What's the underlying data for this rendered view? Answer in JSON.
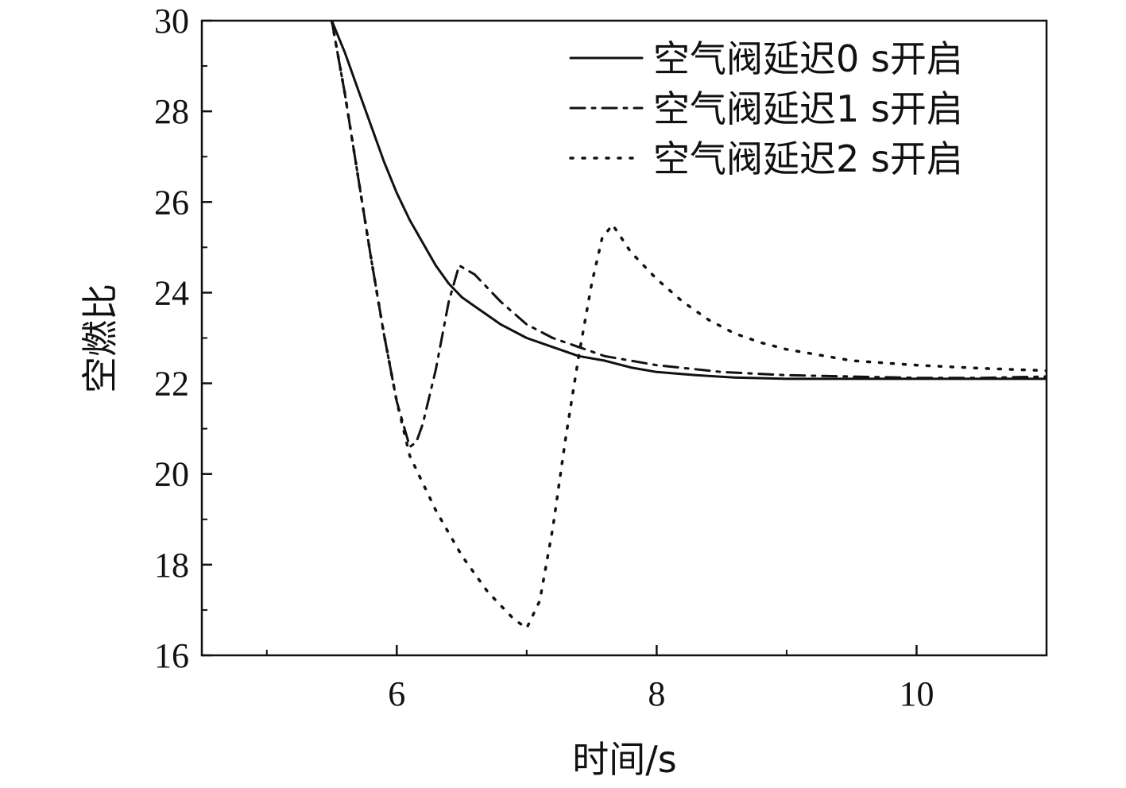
{
  "chart_data": {
    "type": "line",
    "title": "",
    "xlabel": "时间/s",
    "ylabel": "空燃比",
    "xlim": [
      4.5,
      11
    ],
    "ylim": [
      16,
      30
    ],
    "xticks": [
      6,
      8,
      10
    ],
    "xminor": [
      5,
      7,
      9
    ],
    "yticks": [
      16,
      18,
      20,
      22,
      24,
      26,
      28,
      30
    ],
    "yminor": [
      17,
      19,
      21,
      23,
      25,
      27,
      29
    ],
    "grid": false,
    "legend_position": "top-right",
    "series": [
      {
        "name": "空气阀延迟0 s开启",
        "style": "solid",
        "color": "#111111",
        "points": [
          [
            5.5,
            30.0
          ],
          [
            5.6,
            29.3
          ],
          [
            5.7,
            28.5
          ],
          [
            5.8,
            27.7
          ],
          [
            5.9,
            26.9
          ],
          [
            6.0,
            26.2
          ],
          [
            6.1,
            25.6
          ],
          [
            6.2,
            25.1
          ],
          [
            6.3,
            24.6
          ],
          [
            6.4,
            24.2
          ],
          [
            6.5,
            23.9
          ],
          [
            6.6,
            23.7
          ],
          [
            6.7,
            23.5
          ],
          [
            6.8,
            23.3
          ],
          [
            7.0,
            23.0
          ],
          [
            7.2,
            22.8
          ],
          [
            7.4,
            22.6
          ],
          [
            7.6,
            22.5
          ],
          [
            7.8,
            22.35
          ],
          [
            8.0,
            22.25
          ],
          [
            8.3,
            22.18
          ],
          [
            8.6,
            22.13
          ],
          [
            9.0,
            22.1
          ],
          [
            9.5,
            22.1
          ],
          [
            10.0,
            22.1
          ],
          [
            10.5,
            22.1
          ],
          [
            11.0,
            22.1
          ]
        ]
      },
      {
        "name": "空气阀延迟1 s开启",
        "style": "dashdot",
        "color": "#111111",
        "points": [
          [
            5.5,
            30.0
          ],
          [
            5.6,
            28.4
          ],
          [
            5.7,
            26.6
          ],
          [
            5.8,
            24.8
          ],
          [
            5.9,
            23.1
          ],
          [
            6.0,
            21.6
          ],
          [
            6.1,
            20.6
          ],
          [
            6.15,
            20.7
          ],
          [
            6.2,
            21.1
          ],
          [
            6.3,
            22.3
          ],
          [
            6.4,
            23.8
          ],
          [
            6.48,
            24.6
          ],
          [
            6.6,
            24.4
          ],
          [
            6.8,
            23.8
          ],
          [
            7.0,
            23.3
          ],
          [
            7.2,
            23.0
          ],
          [
            7.4,
            22.8
          ],
          [
            7.6,
            22.6
          ],
          [
            7.8,
            22.5
          ],
          [
            8.0,
            22.4
          ],
          [
            8.5,
            22.25
          ],
          [
            9.0,
            22.18
          ],
          [
            9.5,
            22.15
          ],
          [
            10.0,
            22.12
          ],
          [
            10.5,
            22.12
          ],
          [
            11.0,
            22.15
          ]
        ]
      },
      {
        "name": "空气阀延迟2 s开启",
        "style": "dotted",
        "color": "#111111",
        "points": [
          [
            5.5,
            30.0
          ],
          [
            5.6,
            28.4
          ],
          [
            5.7,
            26.6
          ],
          [
            5.8,
            24.8
          ],
          [
            5.9,
            23.1
          ],
          [
            6.0,
            21.6
          ],
          [
            6.1,
            20.4
          ],
          [
            6.2,
            19.8
          ],
          [
            6.3,
            19.2
          ],
          [
            6.4,
            18.7
          ],
          [
            6.5,
            18.2
          ],
          [
            6.6,
            17.8
          ],
          [
            6.7,
            17.4
          ],
          [
            6.8,
            17.1
          ],
          [
            6.9,
            16.8
          ],
          [
            7.0,
            16.6
          ],
          [
            7.1,
            17.2
          ],
          [
            7.2,
            18.8
          ],
          [
            7.3,
            20.8
          ],
          [
            7.4,
            22.6
          ],
          [
            7.5,
            24.2
          ],
          [
            7.58,
            25.2
          ],
          [
            7.66,
            25.5
          ],
          [
            7.8,
            24.9
          ],
          [
            8.0,
            24.3
          ],
          [
            8.2,
            23.8
          ],
          [
            8.4,
            23.4
          ],
          [
            8.6,
            23.1
          ],
          [
            8.8,
            22.9
          ],
          [
            9.0,
            22.75
          ],
          [
            9.5,
            22.5
          ],
          [
            10.0,
            22.4
          ],
          [
            10.5,
            22.33
          ],
          [
            11.0,
            22.28
          ]
        ]
      }
    ]
  }
}
